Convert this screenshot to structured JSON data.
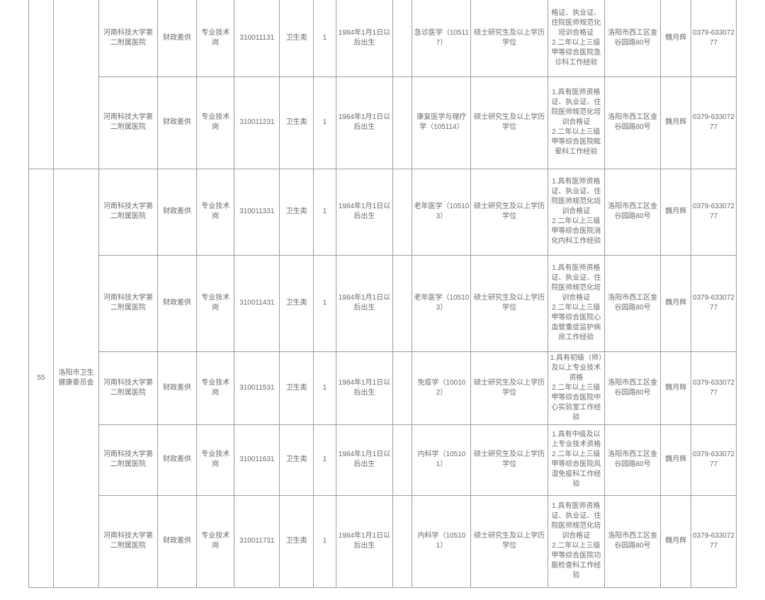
{
  "table": {
    "seq": "55",
    "dept": "洛阳市卫生健康委员会",
    "rows": [
      {
        "unit": "河南科技大学第二附属医院",
        "supply": "财政差供",
        "post": "专业技术岗",
        "code": "310011131",
        "category": "卫生类",
        "count": "1",
        "birth": "1984年1月1日以后出生",
        "blank": "",
        "major": "急诊医学（105117）",
        "degree": "硕士研究生及以上学历学位",
        "req": "格证、执业证、住院医师规范化培训合格证\n2.二年以上三级甲等综合医院急诊科工作经验",
        "addr": "洛阳市西工区金谷园路80号",
        "contact": "魏月辉",
        "phone": "0379-63307277"
      },
      {
        "unit": "河南科技大学第二附属医院",
        "supply": "财政差供",
        "post": "专业技术岗",
        "code": "310011231",
        "category": "卫生类",
        "count": "1",
        "birth": "1984年1月1日以后出生",
        "blank": "",
        "major": "康复医学与理疗学（105114）",
        "degree": "硕士研究生及以上学历学位",
        "req": "1.具有医师资格证、执业证、住院医师规范化培训合格证\n2.二年以上三级甲等综合医院眩晕科工作经验",
        "addr": "洛阳市西工区金谷园路80号",
        "contact": "魏月辉",
        "phone": "0379-63307277"
      },
      {
        "unit": "河南科技大学第二附属医院",
        "supply": "财政差供",
        "post": "专业技术岗",
        "code": "310011331",
        "category": "卫生类",
        "count": "1",
        "birth": "1984年1月1日以后出生",
        "blank": "",
        "major": "老年医学（105103）",
        "degree": "硕士研究生及以上学历学位",
        "req": "1.具有医师资格证、执业证、住院医师规范化培训合格证\n2.二年以上三级甲等综合医院消化内科工作经验",
        "addr": "洛阳市西工区金谷园路80号",
        "contact": "魏月辉",
        "phone": "0379-63307277"
      },
      {
        "unit": "河南科技大学第二附属医院",
        "supply": "财政差供",
        "post": "专业技术岗",
        "code": "310011431",
        "category": "卫生类",
        "count": "1",
        "birth": "1984年1月1日以后出生",
        "blank": "",
        "major": "老年医学（105103）",
        "degree": "硕士研究生及以上学历学位",
        "req": "1.具有医师资格证、执业证、住院医师规范化培训合格证\n2.二年以上三级甲等综合医院心血管重症监护病房工作经验",
        "addr": "洛阳市西工区金谷园路80号",
        "contact": "魏月辉",
        "phone": "0379-63307277"
      },
      {
        "unit": "河南科技大学第二附属医院",
        "supply": "财政差供",
        "post": "专业技术岗",
        "code": "310011531",
        "category": "卫生类",
        "count": "1",
        "birth": "1984年1月1日以后出生",
        "blank": "",
        "major": "免疫学（100102）",
        "degree": "硕士研究生及以上学历学位",
        "req": "1.具有初级（师）及以上专业技术资格\n2.二年以上三级甲等综合医院中心实验室工作经验",
        "addr": "洛阳市西工区金谷园路80号",
        "contact": "魏月辉",
        "phone": "0379-63307277"
      },
      {
        "unit": "河南科技大学第二附属医院",
        "supply": "财政差供",
        "post": "专业技术岗",
        "code": "310011631",
        "category": "卫生类",
        "count": "1",
        "birth": "1984年1月1日以后出生",
        "blank": "",
        "major": "内科学（105101）",
        "degree": "硕士研究生及以上学历学位",
        "req": "1.具有中级及以上专业技术资格\n2.二年以上三级甲等综合医院风湿免疫科工作经验",
        "addr": "洛阳市西工区金谷园路80号",
        "contact": "魏月辉",
        "phone": "0379-63307277"
      },
      {
        "unit": "河南科技大学第二附属医院",
        "supply": "财政差供",
        "post": "专业技术岗",
        "code": "310011731",
        "category": "卫生类",
        "count": "1",
        "birth": "1984年1月1日以后出生",
        "blank": "",
        "major": "内科学（105101）",
        "degree": "硕士研究生及以上学历学位",
        "req": "1.具有医师资格证、执业证、住院医师规范化培训合格证\n2.二年以上三级甲等综合医院功能检查科工作经验",
        "addr": "洛阳市西工区金谷园路80号",
        "contact": "魏月辉",
        "phone": "0379-63307277"
      }
    ]
  }
}
